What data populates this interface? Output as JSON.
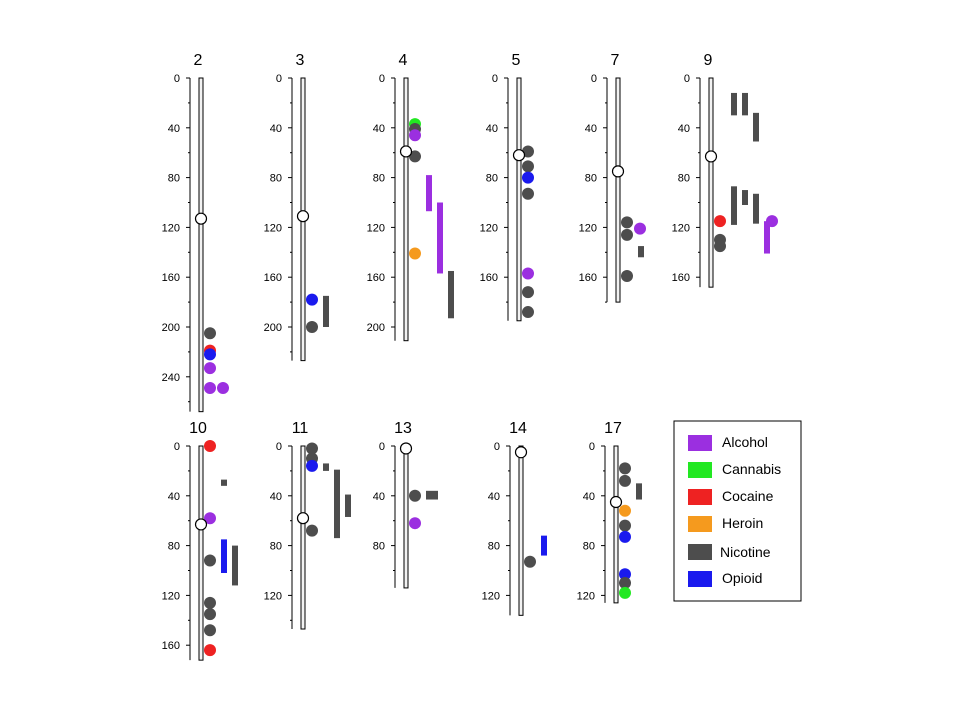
{
  "colors": {
    "Alcohol": "#9b2fe0",
    "Cannabis": "#22e822",
    "Cocaine": "#ee2222",
    "Heroin": "#f59a1e",
    "Nicotine": "#4d4d4d",
    "Opioid": "#1a1aee"
  },
  "legend": {
    "items": [
      {
        "label": "Alcohol",
        "key": "Alcohol"
      },
      {
        "label": "Cannabis",
        "key": "Cannabis"
      },
      {
        "label": "Cocaine",
        "key": "Cocaine"
      },
      {
        "label": "Heroin",
        "key": "Heroin"
      },
      {
        "label": "Nicotine",
        "key": "Nicotine"
      },
      {
        "label": "Opioid",
        "key": "Opioid"
      }
    ]
  },
  "chromosomes": [
    {
      "name": "2",
      "length": 268,
      "centromere": 113,
      "ticks": [
        0,
        40,
        80,
        120,
        160,
        200,
        240
      ],
      "dots": [
        {
          "pos": 205,
          "k": "Nicotine"
        },
        {
          "pos": 219,
          "k": "Cocaine"
        },
        {
          "pos": 222,
          "k": "Opioid"
        },
        {
          "pos": 233,
          "k": "Alcohol"
        },
        {
          "pos": 249,
          "k": "Alcohol"
        },
        {
          "pos": 249,
          "k": "Alcohol",
          "col": 1
        }
      ],
      "bars": []
    },
    {
      "name": "3",
      "length": 227,
      "centromere": 111,
      "ticks": [
        0,
        40,
        80,
        120,
        160,
        200
      ],
      "dots": [
        {
          "pos": 178,
          "k": "Opioid"
        },
        {
          "pos": 200,
          "k": "Nicotine"
        }
      ],
      "bars": [
        {
          "start": 175,
          "end": 200,
          "k": "Nicotine",
          "col": 0
        }
      ]
    },
    {
      "name": "4",
      "length": 211,
      "centromere": 59,
      "ticks": [
        0,
        40,
        80,
        120,
        160,
        200
      ],
      "dots": [
        {
          "pos": 37,
          "k": "Cannabis"
        },
        {
          "pos": 41,
          "k": "Nicotine"
        },
        {
          "pos": 46,
          "k": "Alcohol"
        },
        {
          "pos": 63,
          "k": "Nicotine"
        },
        {
          "pos": 141,
          "k": "Heroin"
        }
      ],
      "bars": [
        {
          "start": 78,
          "end": 107,
          "k": "Alcohol",
          "col": 0
        },
        {
          "start": 100,
          "end": 157,
          "k": "Alcohol",
          "col": 1
        },
        {
          "start": 155,
          "end": 193,
          "k": "Nicotine",
          "col": 2
        }
      ]
    },
    {
      "name": "5",
      "length": 195,
      "centromere": 62,
      "ticks": [
        0,
        40,
        80,
        120,
        160
      ],
      "dots": [
        {
          "pos": 59,
          "k": "Nicotine"
        },
        {
          "pos": 71,
          "k": "Nicotine"
        },
        {
          "pos": 80,
          "k": "Opioid"
        },
        {
          "pos": 93,
          "k": "Nicotine"
        },
        {
          "pos": 157,
          "k": "Alcohol"
        },
        {
          "pos": 172,
          "k": "Nicotine"
        },
        {
          "pos": 188,
          "k": "Nicotine"
        }
      ],
      "bars": []
    },
    {
      "name": "7",
      "length": 180,
      "centromere": 75,
      "ticks": [
        0,
        40,
        80,
        120,
        160
      ],
      "dots": [
        {
          "pos": 116,
          "k": "Nicotine"
        },
        {
          "pos": 126,
          "k": "Nicotine"
        },
        {
          "pos": 121,
          "k": "Alcohol",
          "col": 1
        },
        {
          "pos": 159,
          "k": "Nicotine"
        }
      ],
      "bars": [
        {
          "start": 135,
          "end": 144,
          "k": "Nicotine",
          "col": 0
        }
      ]
    },
    {
      "name": "9",
      "length": 168,
      "centromere": 63,
      "ticks": [
        0,
        40,
        80,
        120,
        160
      ],
      "dots": [
        {
          "pos": 115,
          "k": "Cocaine"
        },
        {
          "pos": 130,
          "k": "Nicotine"
        },
        {
          "pos": 135,
          "k": "Nicotine"
        },
        {
          "pos": 115,
          "k": "Alcohol",
          "col": 4
        }
      ],
      "bars": [
        {
          "start": 12,
          "end": 30,
          "k": "Nicotine",
          "col": 0
        },
        {
          "start": 12,
          "end": 30,
          "k": "Nicotine",
          "col": 1
        },
        {
          "start": 28,
          "end": 51,
          "k": "Nicotine",
          "col": 2
        },
        {
          "start": 87,
          "end": 118,
          "k": "Nicotine",
          "col": 0
        },
        {
          "start": 90,
          "end": 102,
          "k": "Nicotine",
          "col": 1
        },
        {
          "start": 93,
          "end": 117,
          "k": "Nicotine",
          "col": 2
        },
        {
          "start": 115,
          "end": 141,
          "k": "Alcohol",
          "col": 3
        }
      ]
    },
    {
      "name": "10",
      "length": 172,
      "centromere": 63,
      "ticks": [
        0,
        40,
        80,
        120,
        160
      ],
      "dots": [
        {
          "pos": 0,
          "k": "Cocaine"
        },
        {
          "pos": 58,
          "k": "Alcohol"
        },
        {
          "pos": 92,
          "k": "Nicotine"
        },
        {
          "pos": 126,
          "k": "Nicotine"
        },
        {
          "pos": 135,
          "k": "Nicotine"
        },
        {
          "pos": 148,
          "k": "Nicotine"
        },
        {
          "pos": 164,
          "k": "Cocaine"
        }
      ],
      "bars": [
        {
          "start": 27,
          "end": 32,
          "k": "Nicotine",
          "col": 0
        },
        {
          "start": 75,
          "end": 102,
          "k": "Opioid",
          "col": 0
        },
        {
          "start": 80,
          "end": 112,
          "k": "Nicotine",
          "col": 1
        }
      ]
    },
    {
      "name": "11",
      "length": 147,
      "centromere": 58,
      "ticks": [
        0,
        40,
        80,
        120
      ],
      "dots": [
        {
          "pos": 2,
          "k": "Nicotine"
        },
        {
          "pos": 10,
          "k": "Nicotine"
        },
        {
          "pos": 16,
          "k": "Opioid"
        },
        {
          "pos": 68,
          "k": "Nicotine"
        }
      ],
      "bars": [
        {
          "start": 14,
          "end": 20,
          "k": "Nicotine",
          "col": 0
        },
        {
          "start": 19,
          "end": 74,
          "k": "Nicotine",
          "col": 1
        },
        {
          "start": 39,
          "end": 57,
          "k": "Nicotine",
          "col": 2
        }
      ]
    },
    {
      "name": "13",
      "length": 114,
      "centromere": 2,
      "ticks": [
        0,
        40,
        80
      ],
      "dots": [
        {
          "pos": 40,
          "k": "Nicotine"
        },
        {
          "pos": 62,
          "k": "Alcohol"
        }
      ],
      "bars": [
        {
          "start": 36,
          "end": 43,
          "k": "Nicotine",
          "col": 0,
          "w": 12
        }
      ]
    },
    {
      "name": "14",
      "length": 136,
      "centromere": 5,
      "ticks": [
        0,
        40,
        80,
        120
      ],
      "dots": [
        {
          "pos": 93,
          "k": "Nicotine"
        }
      ],
      "bars": [
        {
          "start": 72,
          "end": 88,
          "k": "Opioid",
          "col": 0
        }
      ]
    },
    {
      "name": "17",
      "length": 126,
      "centromere": 45,
      "ticks": [
        0,
        40,
        80,
        120
      ],
      "dots": [
        {
          "pos": 18,
          "k": "Nicotine"
        },
        {
          "pos": 28,
          "k": "Nicotine"
        },
        {
          "pos": 52,
          "k": "Heroin"
        },
        {
          "pos": 64,
          "k": "Nicotine"
        },
        {
          "pos": 73,
          "k": "Opioid"
        },
        {
          "pos": 103,
          "k": "Opioid"
        },
        {
          "pos": 110,
          "k": "Nicotine"
        },
        {
          "pos": 118,
          "k": "Cannabis"
        }
      ],
      "bars": [
        {
          "start": 30,
          "end": 43,
          "k": "Nicotine",
          "col": 0
        }
      ]
    }
  ]
}
